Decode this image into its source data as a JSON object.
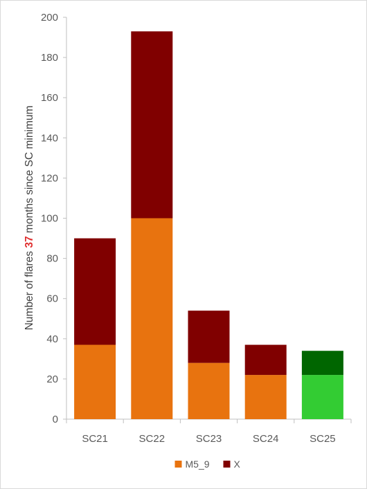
{
  "chart_data": {
    "type": "bar",
    "stacked": true,
    "categories": [
      "SC21",
      "SC22",
      "SC23",
      "SC24",
      "SC25"
    ],
    "series": [
      {
        "name": "M5_9",
        "values": [
          37,
          100,
          28,
          22,
          22
        ],
        "color": "#e8730f"
      },
      {
        "name": "X",
        "values": [
          53,
          93,
          26,
          15,
          12
        ],
        "color": "#800000"
      }
    ],
    "highlight": {
      "category": "SC25",
      "colors": [
        "#33cc33",
        "#006600"
      ]
    },
    "ylabel": {
      "prefix": "Number of flares ",
      "highlight": "37",
      "suffix": " months since SC minimum",
      "highlight_color": "#e03030"
    },
    "xlabel": "",
    "ylim": [
      0,
      200
    ],
    "yticks": [
      0,
      20,
      40,
      60,
      80,
      100,
      120,
      140,
      160,
      180,
      200
    ],
    "grid": false,
    "legend": "bottom"
  }
}
